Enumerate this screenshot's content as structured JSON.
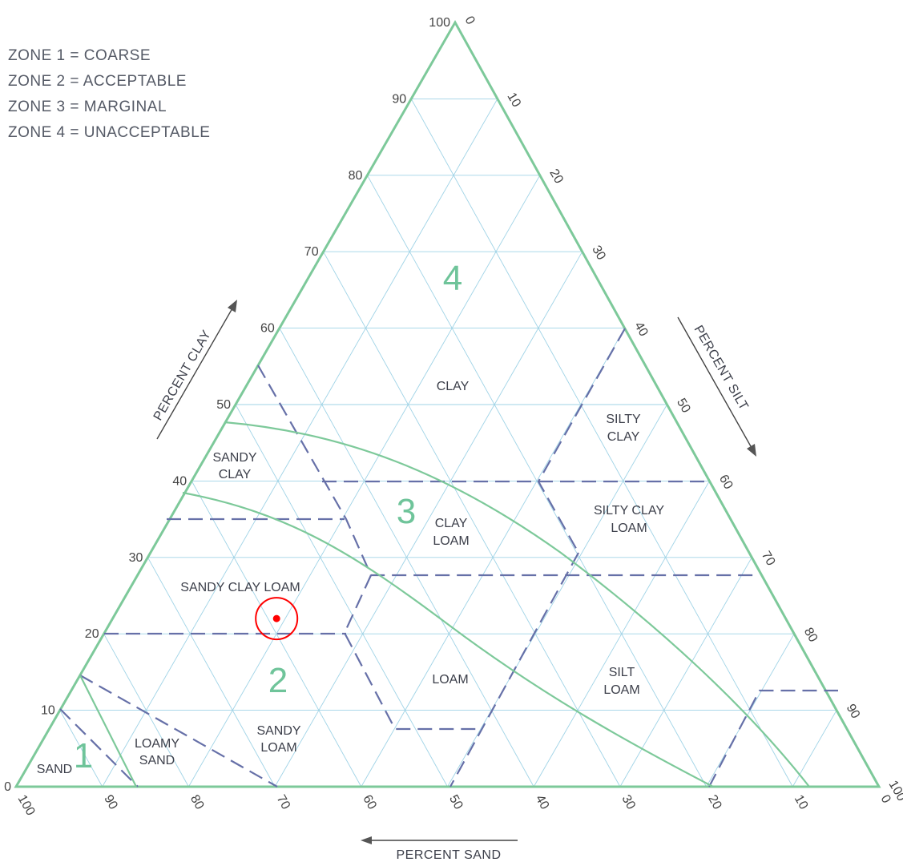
{
  "legend": [
    "ZONE  1  =  COARSE",
    "ZONE  2  =  ACCEPTABLE",
    "ZONE  3  =  MARGINAL",
    "ZONE  4  =  UNACCEPTABLE"
  ],
  "axes": {
    "clay_title": "PERCENT  CLAY",
    "silt_title": "PERCENT  SILT",
    "sand_title": "PERCENT  SAND"
  },
  "ticks": {
    "clay": [
      "0",
      "10",
      "20",
      "30",
      "40",
      "50",
      "60",
      "70",
      "80",
      "90",
      "100"
    ],
    "silt": [
      "0",
      "10",
      "20",
      "30",
      "40",
      "50",
      "60",
      "70",
      "80",
      "90",
      "100"
    ],
    "sand": [
      "100",
      "90",
      "80",
      "70",
      "60",
      "50",
      "40",
      "30",
      "20",
      "10",
      "0"
    ]
  },
  "classes": {
    "clay": "CLAY",
    "silty_clay_1": "SILTY",
    "silty_clay_2": "CLAY",
    "sandy_clay_1": "SANDY",
    "sandy_clay_2": "CLAY",
    "silty_clay_loam_1": "SILTY  CLAY",
    "silty_clay_loam_2": "LOAM",
    "clay_loam_1": "CLAY",
    "clay_loam_2": "LOAM",
    "sandy_clay_loam": "SANDY  CLAY  LOAM",
    "loam": "LOAM",
    "silt_loam_1": "SILT",
    "silt_loam_2": "LOAM",
    "sandy_loam_1": "SANDY",
    "sandy_loam_2": "LOAM",
    "loamy_sand_1": "LOAMY",
    "loamy_sand_2": "SAND",
    "sand": "SAND"
  },
  "zones": {
    "z1": "1",
    "z2": "2",
    "z3": "3",
    "z4": "4"
  },
  "sample_point": {
    "sand_pct": 59,
    "clay_pct": 22,
    "silt_pct": 19,
    "marker_color": "#ff0000"
  },
  "colors": {
    "border": "#7dc99a",
    "grid": "#9fd3e6",
    "class_lines": "#6670a8",
    "zone_curves": "#7dc99a"
  }
}
